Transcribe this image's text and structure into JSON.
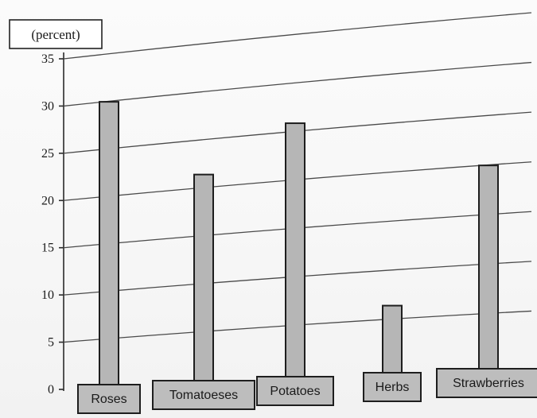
{
  "chart_data": {
    "type": "bar",
    "unit_label": "(percent)",
    "categories": [
      "Roses",
      "Tomatoeses",
      "Potatoes",
      "Herbs",
      "Strawberries"
    ],
    "values": [
      30,
      21.5,
      26,
      6.5,
      20
    ],
    "ylim": [
      0,
      35
    ],
    "yticks": [
      0,
      5,
      10,
      15,
      20,
      25,
      30,
      35
    ],
    "grid": true,
    "colors": {
      "bar": "#b6b6b6",
      "label_box": "#bdbdbd",
      "outline": "#1e1e1e"
    }
  }
}
